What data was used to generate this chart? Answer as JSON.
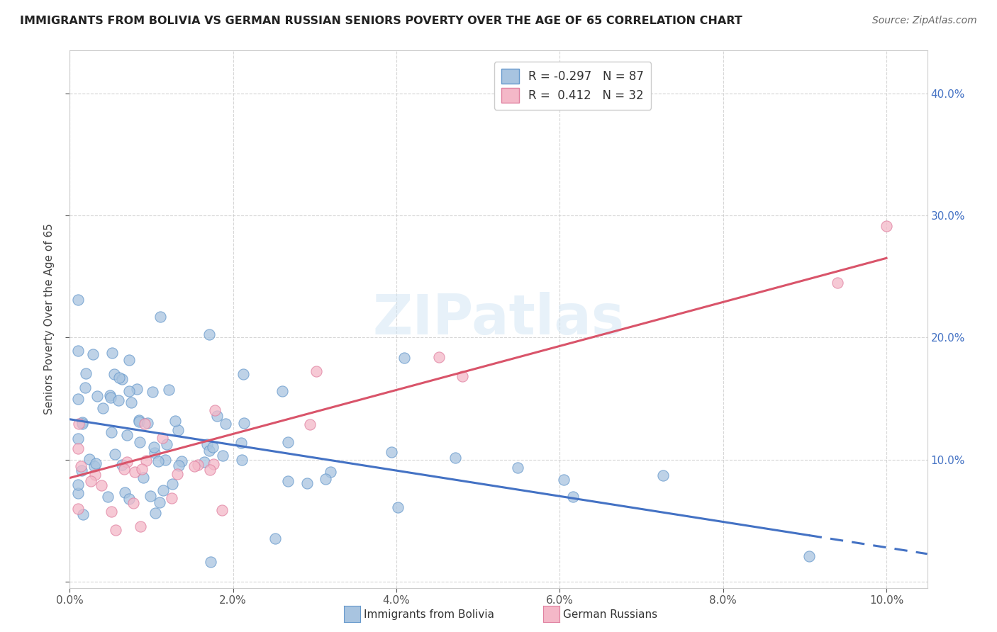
{
  "title": "IMMIGRANTS FROM BOLIVIA VS GERMAN RUSSIAN SENIORS POVERTY OVER THE AGE OF 65 CORRELATION CHART",
  "source": "Source: ZipAtlas.com",
  "ylabel": "Seniors Poverty Over the Age of 65",
  "xlim": [
    0,
    0.105
  ],
  "ylim": [
    -0.005,
    0.435
  ],
  "x_ticks": [
    0,
    0.02,
    0.04,
    0.06,
    0.08,
    0.1
  ],
  "x_tick_labels": [
    "0.0%",
    "2.0%",
    "4.0%",
    "6.0%",
    "8.0%",
    "10.0%"
  ],
  "y_ticks": [
    0.0,
    0.1,
    0.2,
    0.3,
    0.4
  ],
  "y_tick_labels_right": [
    "",
    "10.0%",
    "20.0%",
    "30.0%",
    "40.0%"
  ],
  "legend1_label": "R = -0.297   N = 87",
  "legend2_label": "R =  0.412   N = 32",
  "color_bolivia": "#a8c4e0",
  "color_bolivia_edge": "#6699cc",
  "color_german": "#f4b8c8",
  "color_german_edge": "#e080a0",
  "color_line_bolivia": "#4472c4",
  "color_line_german": "#d9546a",
  "watermark": "ZIPatlas",
  "bolivia_intercept": 0.133,
  "bolivia_slope": -1.05,
  "german_intercept": 0.085,
  "german_slope": 1.8,
  "seed": 12345,
  "n_bolivia": 87,
  "n_german": 32
}
